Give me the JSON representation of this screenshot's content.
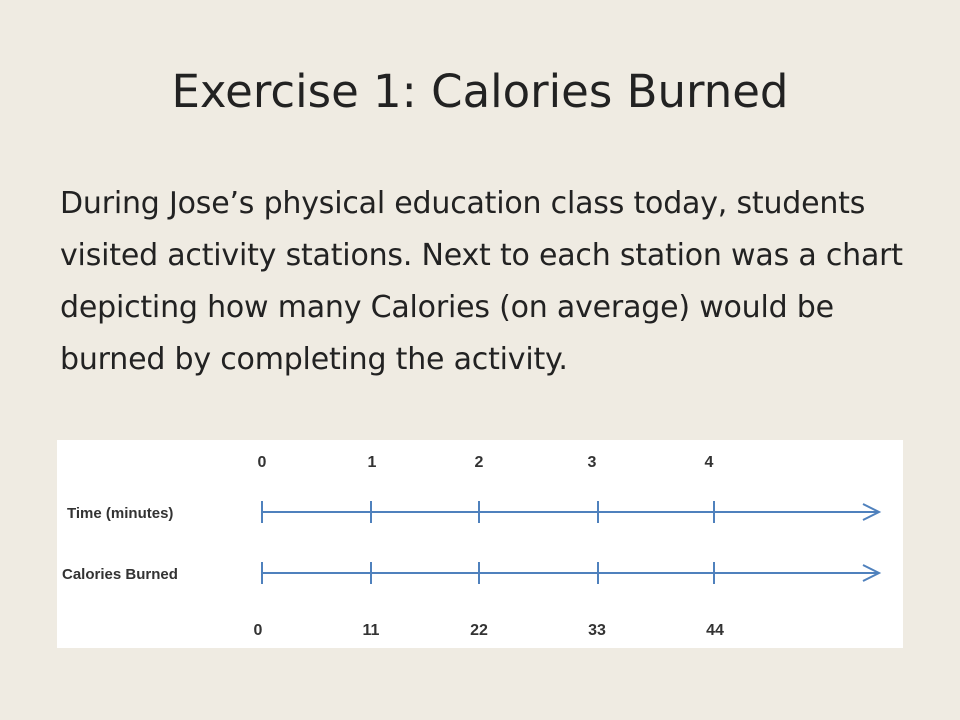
{
  "slide": {
    "title": "Exercise 1: Calories Burned",
    "body": "During Jose’s physical education class today, students visited activity stations. Next to each station was a chart depicting how many Calories (on average) would be burned by completing the activity."
  },
  "diagram": {
    "type": "double-number-line",
    "line_color": "#4f81bd",
    "label_color": "#333333",
    "top_line": {
      "label": "Time (minutes)",
      "tick_labels": [
        "0",
        "1",
        "2",
        "3",
        "4"
      ]
    },
    "bottom_line": {
      "label": "Calories Burned",
      "tick_labels": [
        "0",
        "11",
        "22",
        "33",
        "44"
      ]
    }
  }
}
